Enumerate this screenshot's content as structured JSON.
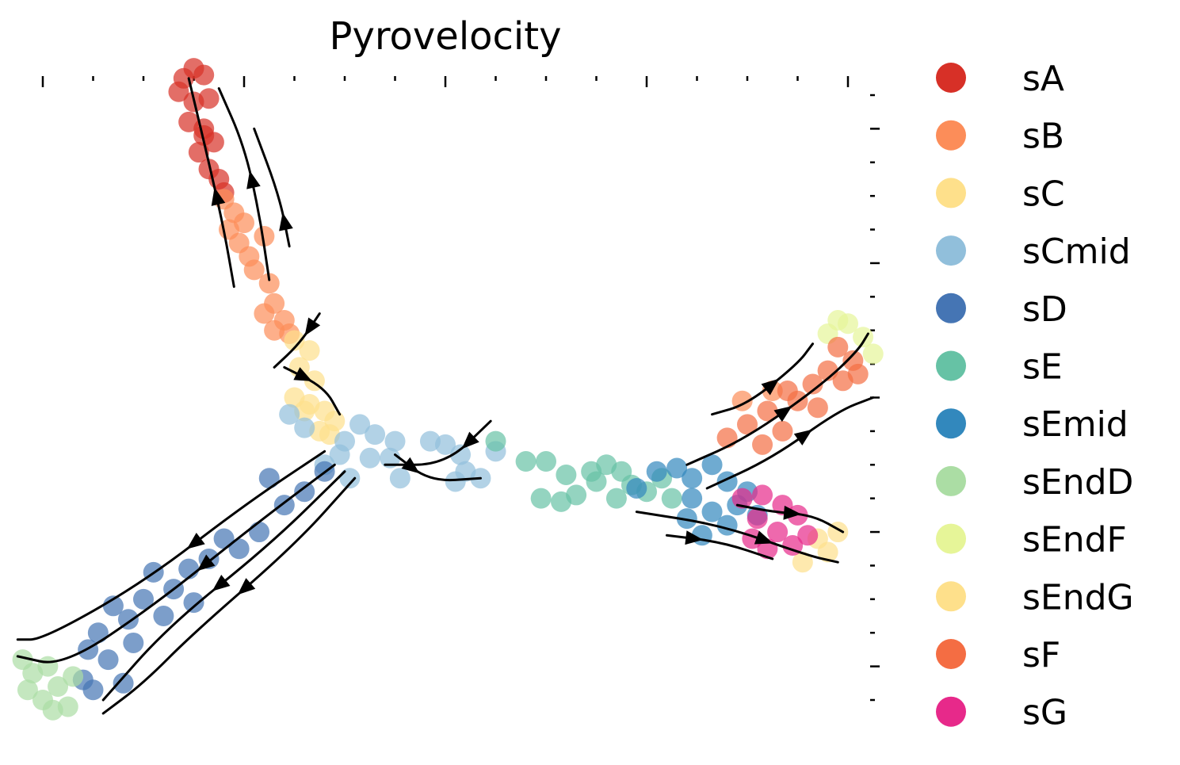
{
  "chart_data": {
    "type": "scatter",
    "title": "Pyrovelocity",
    "xlabel": "",
    "ylabel": "",
    "xlim": [
      0,
      16
    ],
    "ylim": [
      0,
      18
    ],
    "x_ticks": [
      0,
      1,
      2,
      3,
      4,
      5,
      6,
      7,
      8,
      9,
      10,
      11,
      12,
      13,
      14,
      15,
      16
    ],
    "y_ticks": [
      0,
      1,
      2,
      3,
      4,
      5,
      6,
      7,
      8,
      9,
      10,
      11,
      12,
      13,
      14,
      15,
      16,
      17,
      18
    ],
    "grid": false,
    "legend_position": "right",
    "series": [
      {
        "name": "sA",
        "color": "#d73027",
        "points": [
          [
            2.8,
            18.5
          ],
          [
            3.0,
            18.8
          ],
          [
            3.2,
            18.6
          ],
          [
            2.7,
            18.1
          ],
          [
            3.0,
            17.8
          ],
          [
            3.3,
            17.9
          ],
          [
            2.9,
            17.2
          ],
          [
            3.2,
            17.0
          ],
          [
            3.4,
            16.6
          ],
          [
            3.1,
            16.3
          ],
          [
            3.3,
            15.8
          ],
          [
            3.5,
            15.5
          ],
          [
            3.6,
            15.1
          ],
          [
            3.2,
            16.8
          ]
        ]
      },
      {
        "name": "sB",
        "color": "#fc8d59",
        "points": [
          [
            3.6,
            14.9
          ],
          [
            3.8,
            14.5
          ],
          [
            3.7,
            14.0
          ],
          [
            3.9,
            13.6
          ],
          [
            4.1,
            13.2
          ],
          [
            4.4,
            13.8
          ],
          [
            4.2,
            12.8
          ],
          [
            4.5,
            12.4
          ],
          [
            4.6,
            11.8
          ],
          [
            4.4,
            11.5
          ],
          [
            4.8,
            11.3
          ],
          [
            4.9,
            10.9
          ],
          [
            4.6,
            11.0
          ],
          [
            4.0,
            14.2
          ],
          [
            13.9,
            8.9
          ],
          [
            14.5,
            9.2
          ]
        ]
      },
      {
        "name": "sC",
        "color": "#fee08b",
        "points": [
          [
            5.0,
            10.7
          ],
          [
            5.3,
            10.4
          ],
          [
            5.1,
            9.9
          ],
          [
            5.4,
            9.5
          ],
          [
            5.0,
            9.0
          ],
          [
            5.3,
            8.8
          ],
          [
            5.6,
            8.6
          ],
          [
            5.8,
            8.3
          ],
          [
            5.5,
            8.0
          ],
          [
            5.2,
            8.6
          ],
          [
            5.7,
            7.9
          ]
        ]
      },
      {
        "name": "sCmid",
        "color": "#91bfdb",
        "points": [
          [
            4.9,
            8.5
          ],
          [
            5.2,
            8.1
          ],
          [
            6.3,
            8.2
          ],
          [
            6.0,
            7.7
          ],
          [
            6.6,
            7.9
          ],
          [
            7.0,
            7.7
          ],
          [
            6.5,
            7.2
          ],
          [
            6.1,
            6.6
          ],
          [
            5.6,
            7.0
          ],
          [
            7.7,
            7.7
          ],
          [
            8.0,
            7.6
          ],
          [
            8.3,
            7.3
          ],
          [
            8.4,
            6.8
          ],
          [
            8.7,
            6.6
          ],
          [
            9.0,
            7.4
          ],
          [
            8.2,
            6.5
          ],
          [
            7.1,
            6.6
          ],
          [
            5.9,
            7.3
          ],
          [
            6.9,
            7.2
          ]
        ]
      },
      {
        "name": "sD",
        "color": "#4575b4",
        "points": [
          [
            5.6,
            6.8
          ],
          [
            5.2,
            6.2
          ],
          [
            4.8,
            5.8
          ],
          [
            4.5,
            6.6
          ],
          [
            4.3,
            5.0
          ],
          [
            3.9,
            4.5
          ],
          [
            3.6,
            4.8
          ],
          [
            3.3,
            4.2
          ],
          [
            2.9,
            3.9
          ],
          [
            2.6,
            3.3
          ],
          [
            2.2,
            3.8
          ],
          [
            2.0,
            3.0
          ],
          [
            1.7,
            2.4
          ],
          [
            1.4,
            2.8
          ],
          [
            1.1,
            2.0
          ],
          [
            0.9,
            1.5
          ],
          [
            1.3,
            1.2
          ],
          [
            0.8,
            0.6
          ],
          [
            1.0,
            0.3
          ],
          [
            2.4,
            2.5
          ],
          [
            1.8,
            1.7
          ],
          [
            3.0,
            2.9
          ],
          [
            1.6,
            0.5
          ]
        ]
      },
      {
        "name": "sE",
        "color": "#66c2a5",
        "points": [
          [
            9.0,
            7.7
          ],
          [
            9.6,
            7.1
          ],
          [
            10.0,
            7.1
          ],
          [
            10.4,
            6.7
          ],
          [
            9.9,
            6.0
          ],
          [
            10.6,
            6.1
          ],
          [
            10.3,
            5.9
          ],
          [
            10.9,
            6.8
          ],
          [
            11.2,
            7.0
          ],
          [
            11.5,
            6.8
          ],
          [
            11.7,
            6.4
          ],
          [
            11.0,
            6.5
          ],
          [
            12.0,
            6.2
          ],
          [
            11.4,
            6.0
          ],
          [
            12.3,
            6.6
          ],
          [
            12.5,
            6.0
          ]
        ]
      },
      {
        "name": "sEmid",
        "color": "#3288bd",
        "points": [
          [
            11.8,
            6.3
          ],
          [
            12.2,
            6.8
          ],
          [
            12.6,
            6.9
          ],
          [
            12.9,
            6.6
          ],
          [
            13.3,
            7.0
          ],
          [
            13.6,
            6.5
          ],
          [
            12.9,
            6.0
          ],
          [
            13.3,
            5.6
          ],
          [
            13.8,
            5.8
          ],
          [
            14.0,
            6.2
          ],
          [
            13.6,
            5.2
          ],
          [
            12.8,
            5.4
          ],
          [
            13.1,
            4.9
          ],
          [
            14.2,
            5.5
          ]
        ]
      },
      {
        "name": "sEndD",
        "color": "#abdda4",
        "points": [
          [
            -0.4,
            1.2
          ],
          [
            -0.2,
            0.8
          ],
          [
            0.1,
            1.0
          ],
          [
            -0.3,
            0.3
          ],
          [
            0.0,
            0.0
          ],
          [
            0.3,
            0.4
          ],
          [
            0.5,
            -0.2
          ],
          [
            0.2,
            -0.3
          ],
          [
            0.6,
            0.7
          ]
        ]
      },
      {
        "name": "sEndF",
        "color": "#e6f598",
        "points": [
          [
            15.6,
            10.9
          ],
          [
            16.0,
            11.2
          ],
          [
            16.3,
            10.8
          ],
          [
            16.5,
            10.3
          ],
          [
            15.8,
            11.3
          ]
        ]
      },
      {
        "name": "sEndG",
        "color": "#fee08b",
        "points": [
          [
            15.4,
            4.8
          ],
          [
            15.6,
            4.4
          ],
          [
            15.1,
            4.1
          ],
          [
            15.8,
            5.0
          ]
        ]
      },
      {
        "name": "sF",
        "color": "#f46d43",
        "points": [
          [
            13.6,
            7.8
          ],
          [
            14.0,
            8.2
          ],
          [
            14.4,
            8.6
          ],
          [
            14.7,
            8.0
          ],
          [
            15.0,
            8.9
          ],
          [
            15.3,
            9.4
          ],
          [
            15.6,
            9.8
          ],
          [
            15.9,
            9.5
          ],
          [
            16.1,
            10.1
          ],
          [
            15.4,
            8.7
          ],
          [
            14.8,
            9.2
          ],
          [
            16.2,
            9.7
          ],
          [
            15.8,
            10.5
          ],
          [
            14.3,
            7.6
          ]
        ]
      },
      {
        "name": "sG",
        "color": "#e7298a",
        "points": [
          [
            13.9,
            6.0
          ],
          [
            14.3,
            6.1
          ],
          [
            14.7,
            5.8
          ],
          [
            14.2,
            5.4
          ],
          [
            14.6,
            5.0
          ],
          [
            14.9,
            4.6
          ],
          [
            15.2,
            4.9
          ],
          [
            14.4,
            4.5
          ],
          [
            15.0,
            5.5
          ],
          [
            14.1,
            4.8
          ]
        ]
      }
    ],
    "streamlines": [
      [
        [
          3.8,
          12.3
        ],
        [
          3.6,
          14.0
        ],
        [
          3.3,
          16.0
        ],
        [
          2.9,
          18.5
        ]
      ],
      [
        [
          4.5,
          12.5
        ],
        [
          4.3,
          14.5
        ],
        [
          4.0,
          16.5
        ],
        [
          3.5,
          18.2
        ]
      ],
      [
        [
          4.9,
          13.5
        ],
        [
          4.7,
          15.0
        ],
        [
          4.2,
          17.0
        ]
      ],
      [
        [
          5.5,
          11.5
        ],
        [
          5.1,
          10.6
        ],
        [
          4.6,
          9.9
        ]
      ],
      [
        [
          4.8,
          9.9
        ],
        [
          5.6,
          9.3
        ],
        [
          5.9,
          8.5
        ]
      ],
      [
        [
          5.6,
          7.4
        ],
        [
          4.0,
          5.8
        ],
        [
          2.0,
          3.5
        ],
        [
          0.0,
          1.8
        ],
        [
          -0.5,
          1.8
        ]
      ],
      [
        [
          5.8,
          7.0
        ],
        [
          4.2,
          5.2
        ],
        [
          2.2,
          2.8
        ],
        [
          0.4,
          1.0
        ],
        [
          -0.5,
          1.3
        ]
      ],
      [
        [
          6.0,
          6.8
        ],
        [
          4.5,
          4.6
        ],
        [
          2.5,
          2.2
        ],
        [
          1.2,
          0.0
        ]
      ],
      [
        [
          6.2,
          6.6
        ],
        [
          5.0,
          4.6
        ],
        [
          3.0,
          2.0
        ],
        [
          2.0,
          0.5
        ],
        [
          1.2,
          -0.4
        ]
      ],
      [
        [
          8.9,
          8.3
        ],
        [
          8.0,
          7.0
        ],
        [
          6.8,
          7.0
        ]
      ],
      [
        [
          7.0,
          7.3
        ],
        [
          7.7,
          6.5
        ],
        [
          8.7,
          6.6
        ]
      ],
      [
        [
          11.8,
          5.6
        ],
        [
          13.5,
          5.2
        ],
        [
          15.2,
          4.3
        ],
        [
          15.8,
          4.1
        ]
      ],
      [
        [
          12.4,
          4.9
        ],
        [
          13.5,
          4.7
        ],
        [
          14.5,
          4.2
        ]
      ],
      [
        [
          12.8,
          7.0
        ],
        [
          14.0,
          7.8
        ],
        [
          15.5,
          9.4
        ],
        [
          16.2,
          10.4
        ],
        [
          16.4,
          10.9
        ]
      ],
      [
        [
          13.2,
          6.3
        ],
        [
          14.5,
          7.2
        ],
        [
          15.8,
          8.6
        ],
        [
          16.5,
          9.0
        ]
      ],
      [
        [
          13.3,
          8.5
        ],
        [
          14.0,
          8.8
        ],
        [
          15.0,
          10.0
        ],
        [
          15.3,
          10.6
        ]
      ],
      [
        [
          13.8,
          5.8
        ],
        [
          14.5,
          5.6
        ],
        [
          15.3,
          5.5
        ],
        [
          15.9,
          5.0
        ]
      ]
    ]
  }
}
